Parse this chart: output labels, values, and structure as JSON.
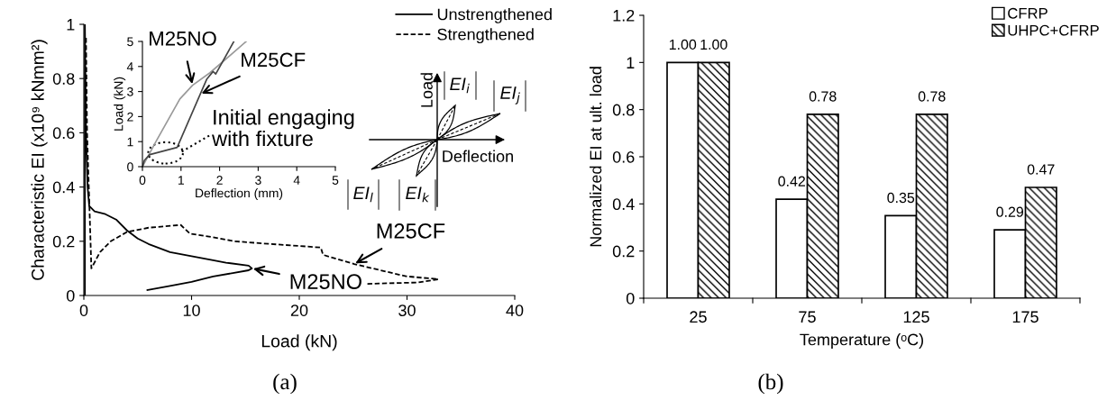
{
  "chart_data": [
    {
      "type": "line",
      "xlabel": "Load (kN)",
      "ylabel": "Characteristic EI (x10⁹ kNmm²)",
      "xlim": [
        0,
        40
      ],
      "xticks": [
        0,
        10,
        20,
        30,
        40
      ],
      "ylim": [
        0,
        1
      ],
      "yticks": [
        0,
        0.2,
        0.4,
        0.6,
        0.8,
        1
      ],
      "grid": false,
      "legend": "top right",
      "series": [
        {
          "name": "Unstrengthened",
          "color": "#000000",
          "line_style": "solid",
          "x": [
            0.1,
            0.1,
            0.2,
            0.35,
            0.5,
            1,
            2,
            3,
            4,
            5,
            6,
            8,
            10,
            12,
            13.2,
            15.3,
            15.6,
            15.3,
            12,
            10,
            8,
            5.9
          ],
          "values": [
            0,
            1.0,
            0.6,
            0.4,
            0.33,
            0.31,
            0.3,
            0.28,
            0.24,
            0.21,
            0.19,
            0.16,
            0.145,
            0.13,
            0.121,
            0.11,
            0.1,
            0.093,
            0.07,
            0.05,
            0.035,
            0.02
          ]
        },
        {
          "name": "Strengthened",
          "color": "#000000",
          "line_style": "dashed",
          "x": [
            0.2,
            0.3,
            0.5,
            0.7,
            1.5,
            2.5,
            4,
            6,
            9,
            9.85,
            12,
            14,
            16.6,
            22,
            22.2,
            25.1,
            29.9,
            32.9,
            31,
            26.3
          ],
          "values": [
            0.95,
            0.6,
            0.35,
            0.1,
            0.16,
            0.2,
            0.234,
            0.25,
            0.26,
            0.228,
            0.215,
            0.2,
            0.192,
            0.177,
            0.15,
            0.116,
            0.071,
            0.06,
            0.048,
            0.043
          ]
        }
      ],
      "annotations": [
        {
          "text": "M25CF",
          "x": 25.1,
          "y": 0.116
        },
        {
          "text": "M25NO",
          "x": 15.6,
          "y": 0.1
        },
        "(a)"
      ]
    },
    {
      "type": "line",
      "xlabel": "Deflection (mm)",
      "ylabel": "Load (kN)",
      "xlim": [
        0,
        5
      ],
      "xticks": [
        0,
        1,
        2,
        3,
        4,
        5
      ],
      "ylim": [
        0,
        5
      ],
      "yticks": [
        0,
        1,
        2,
        3,
        4,
        5
      ],
      "grid": false,
      "line_style": "solid",
      "series": [
        {
          "color": "#999999",
          "x": [
            0,
            0.35,
            0.97,
            1.3,
            1.75,
            2.69
          ],
          "values": [
            0,
            1.0,
            2.7,
            3.25,
            3.75,
            5.0
          ]
        },
        {
          "color": "#444444",
          "x": [
            0,
            0.05,
            0.19,
            0.9,
            1.5,
            1.67,
            1.83,
            1.9,
            2.37
          ],
          "values": [
            0,
            0.25,
            0.48,
            0.77,
            2.9,
            3.5,
            3.8,
            3.7,
            5.0
          ]
        }
      ],
      "annotations": [
        {
          "text": "M25NO",
          "x": 1.3,
          "y": 3.25
        },
        {
          "text": "M25CF",
          "x": 1.5,
          "y": 2.9
        },
        {
          "text": "Initial engaging\nwith fixture",
          "x": 0.6,
          "y": 0.55
        }
      ]
    },
    {
      "type": "other",
      "annotations": [
        "Load",
        "Deflection",
        "EI$_{i}$",
        "EI$_{j}$",
        "EI$_{k}$",
        "EI$_{l}$"
      ]
    },
    {
      "type": "bar",
      "xlabel": "Temperature (ᵒC)",
      "ylabel": "Normalized EI at ult. load",
      "categories": [
        "25",
        "75",
        "125",
        "175"
      ],
      "ylim": [
        0,
        1.2
      ],
      "yticks": [
        0,
        0.2,
        0.4,
        0.6,
        0.8,
        1,
        1.2
      ],
      "grid": false,
      "legend": "top right",
      "series": [
        {
          "name": "CFRP",
          "color": "#ffffff",
          "values": [
            1.0,
            0.42,
            0.35,
            0.29
          ],
          "value_labels": [
            "1.00",
            "0.42",
            "0.35",
            "0.29"
          ]
        },
        {
          "name": "UHPC+CFRP",
          "color": "#000000",
          "values": [
            1.0,
            0.78,
            0.78,
            0.47
          ],
          "value_labels": [
            "1.00",
            "0.78",
            "0.78",
            "0.47"
          ]
        }
      ],
      "annotations": [
        "(b)"
      ]
    }
  ]
}
